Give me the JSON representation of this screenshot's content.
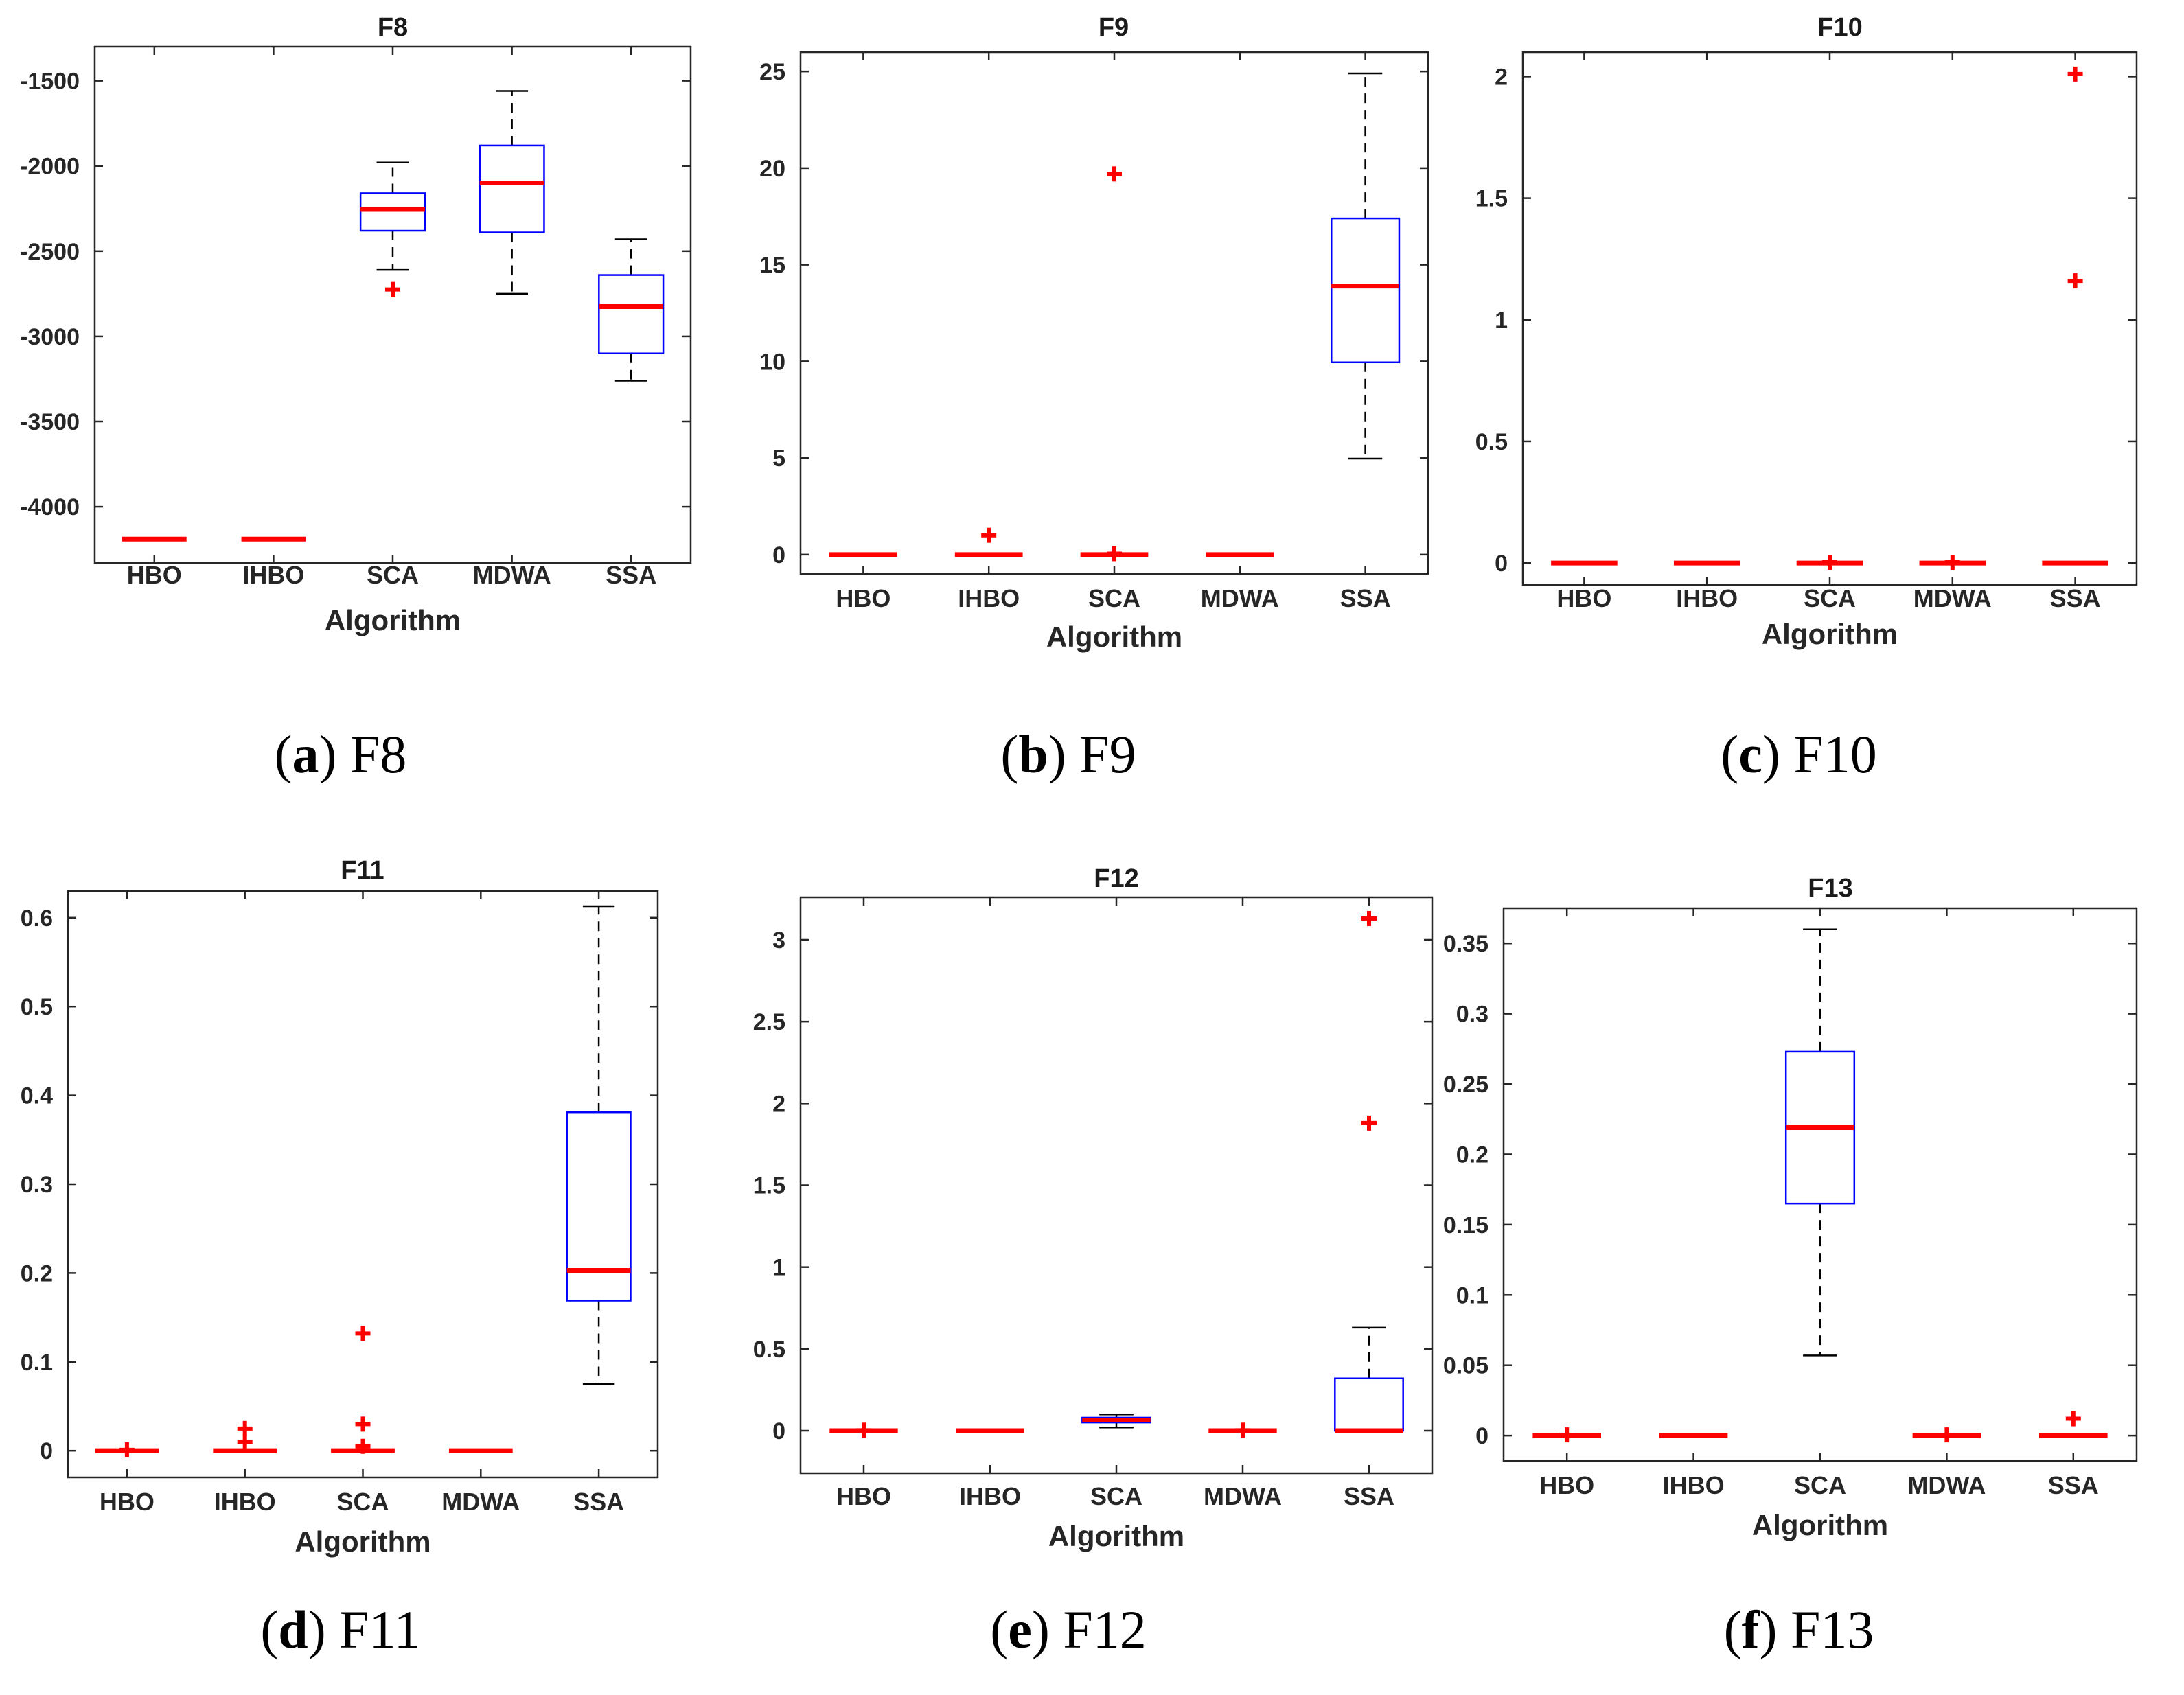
{
  "figure": {
    "xlabel": "Algorithm",
    "categories": [
      "HBO",
      "IHBO",
      "SCA",
      "MDWA",
      "SSA"
    ],
    "colors": {
      "box": "#0000ff",
      "median": "#ff0000",
      "outlier": "#ff0000",
      "whisker": "#000000",
      "axis": "#262626"
    }
  },
  "chart_data": [
    {
      "type": "boxplot",
      "id": "a",
      "title": "F8",
      "caption": {
        "letter": "a",
        "text": "F8"
      },
      "xlabel": "Algorithm",
      "categories": [
        "HBO",
        "IHBO",
        "SCA",
        "MDWA",
        "SSA"
      ],
      "ylim": [
        -4330,
        -1300
      ],
      "yticks": [
        -4000,
        -3500,
        -3000,
        -2500,
        -2000,
        -1500
      ],
      "ytick_labels": [
        "-4000",
        "-3500",
        "-3000",
        "-2500",
        "-2000",
        "-1500"
      ],
      "boxes": [
        {
          "q1": -4190,
          "median": -4190,
          "q3": -4190,
          "whisker_low": -4190,
          "whisker_high": -4190,
          "outliers": []
        },
        {
          "q1": -4190,
          "median": -4190,
          "q3": -4190,
          "whisker_low": -4190,
          "whisker_high": -4190,
          "outliers": []
        },
        {
          "q1": -2380,
          "median": -2255,
          "q3": -2160,
          "whisker_low": -2610,
          "whisker_high": -1980,
          "outliers": [
            -2725
          ]
        },
        {
          "q1": -2390,
          "median": -2100,
          "q3": -1880,
          "whisker_low": -2750,
          "whisker_high": -1560,
          "outliers": []
        },
        {
          "q1": -3100,
          "median": -2825,
          "q3": -2640,
          "whisker_low": -3260,
          "whisker_high": -2430,
          "outliers": []
        }
      ]
    },
    {
      "type": "boxplot",
      "id": "b",
      "title": "F9",
      "caption": {
        "letter": "b",
        "text": "F9"
      },
      "xlabel": "Algorithm",
      "categories": [
        "HBO",
        "IHBO",
        "SCA",
        "MDWA",
        "SSA"
      ],
      "ylim": [
        -1,
        26
      ],
      "yticks": [
        0,
        5,
        10,
        15,
        20,
        25
      ],
      "ytick_labels": [
        "0",
        "5",
        "10",
        "15",
        "20",
        "25"
      ],
      "boxes": [
        {
          "q1": 0,
          "median": 0,
          "q3": 0,
          "whisker_low": 0,
          "whisker_high": 0,
          "outliers": []
        },
        {
          "q1": 0,
          "median": 0,
          "q3": 0,
          "whisker_low": 0,
          "whisker_high": 0,
          "outliers": [
            1.0
          ]
        },
        {
          "q1": 0,
          "median": 0,
          "q3": 0,
          "whisker_low": 0,
          "whisker_high": 0,
          "outliers": [
            19.7,
            0.05
          ]
        },
        {
          "q1": 0,
          "median": 0,
          "q3": 0,
          "whisker_low": 0,
          "whisker_high": 0,
          "outliers": []
        },
        {
          "q1": 9.95,
          "median": 13.9,
          "q3": 17.4,
          "whisker_low": 4.97,
          "whisker_high": 24.9,
          "outliers": []
        }
      ]
    },
    {
      "type": "boxplot",
      "id": "c",
      "title": "F10",
      "caption": {
        "letter": "c",
        "text": "F10"
      },
      "xlabel": "Algorithm",
      "categories": [
        "HBO",
        "IHBO",
        "SCA",
        "MDWA",
        "SSA"
      ],
      "ylim": [
        -0.09,
        2.1
      ],
      "yticks": [
        0,
        0.5,
        1,
        1.5,
        2
      ],
      "ytick_labels": [
        "0",
        "0.5",
        "1",
        "1.5",
        "2"
      ],
      "boxes": [
        {
          "q1": 0,
          "median": 0,
          "q3": 0,
          "whisker_low": 0,
          "whisker_high": 0,
          "outliers": []
        },
        {
          "q1": 0,
          "median": 0,
          "q3": 0,
          "whisker_low": 0,
          "whisker_high": 0,
          "outliers": []
        },
        {
          "q1": 0,
          "median": 0,
          "q3": 0,
          "whisker_low": 0,
          "whisker_high": 0,
          "outliers": [
            0.003
          ]
        },
        {
          "q1": 0,
          "median": 0,
          "q3": 0,
          "whisker_low": 0,
          "whisker_high": 0,
          "outliers": [
            0.003
          ]
        },
        {
          "q1": 0,
          "median": 0,
          "q3": 0,
          "whisker_low": 0,
          "whisker_high": 0,
          "outliers": [
            2.01,
            1.16
          ]
        }
      ]
    },
    {
      "type": "boxplot",
      "id": "d",
      "title": "F11",
      "caption": {
        "letter": "d",
        "text": "F11"
      },
      "xlabel": "Algorithm",
      "categories": [
        "HBO",
        "IHBO",
        "SCA",
        "MDWA",
        "SSA"
      ],
      "ylim": [
        -0.03,
        0.63
      ],
      "yticks": [
        0,
        0.1,
        0.2,
        0.3,
        0.4,
        0.5,
        0.6
      ],
      "ytick_labels": [
        "0",
        "0.1",
        "0.2",
        "0.3",
        "0.4",
        "0.5",
        "0.6"
      ],
      "boxes": [
        {
          "q1": 0,
          "median": 0,
          "q3": 0,
          "whisker_low": 0,
          "whisker_high": 0,
          "outliers": [
            0.001
          ]
        },
        {
          "q1": 0,
          "median": 0,
          "q3": 0,
          "whisker_low": 0,
          "whisker_high": 0,
          "outliers": [
            0.025,
            0.01
          ]
        },
        {
          "q1": 0,
          "median": 0,
          "q3": 0,
          "whisker_low": 0,
          "whisker_high": 0,
          "outliers": [
            0.132,
            0.03,
            0.005
          ]
        },
        {
          "q1": 0,
          "median": 0,
          "q3": 0,
          "whisker_low": 0,
          "whisker_high": 0,
          "outliers": []
        },
        {
          "q1": 0.169,
          "median": 0.203,
          "q3": 0.381,
          "whisker_low": 0.075,
          "whisker_high": 0.613,
          "outliers": []
        }
      ]
    },
    {
      "type": "boxplot",
      "id": "e",
      "title": "F12",
      "caption": {
        "letter": "e",
        "text": "F12"
      },
      "xlabel": "Algorithm",
      "categories": [
        "HBO",
        "IHBO",
        "SCA",
        "MDWA",
        "SSA"
      ],
      "ylim": [
        -0.26,
        3.26
      ],
      "yticks": [
        0,
        0.5,
        1,
        1.5,
        2,
        2.5,
        3
      ],
      "ytick_labels": [
        "0",
        "0.5",
        "1",
        "1.5",
        "2",
        "2.5",
        "3"
      ],
      "boxes": [
        {
          "q1": 0,
          "median": 0,
          "q3": 0,
          "whisker_low": 0,
          "whisker_high": 0,
          "outliers": [
            0.003
          ]
        },
        {
          "q1": 0,
          "median": 0,
          "q3": 0,
          "whisker_low": 0,
          "whisker_high": 0,
          "outliers": []
        },
        {
          "q1": 0.05,
          "median": 0.065,
          "q3": 0.08,
          "whisker_low": 0.02,
          "whisker_high": 0.1,
          "outliers": []
        },
        {
          "q1": 0,
          "median": 0,
          "q3": 0,
          "whisker_low": 0,
          "whisker_high": 0,
          "outliers": [
            0.003
          ]
        },
        {
          "q1": 0,
          "median": 0,
          "q3": 0.32,
          "whisker_low": 0,
          "whisker_high": 0.63,
          "outliers": [
            3.13,
            1.88
          ]
        }
      ]
    },
    {
      "type": "boxplot",
      "id": "f",
      "title": "F13",
      "caption": {
        "letter": "f",
        "text": "F13"
      },
      "xlabel": "Algorithm",
      "categories": [
        "HBO",
        "IHBO",
        "SCA",
        "MDWA",
        "SSA"
      ],
      "ylim": [
        -0.018,
        0.375
      ],
      "yticks": [
        0,
        0.05,
        0.1,
        0.15,
        0.2,
        0.25,
        0.3,
        0.35
      ],
      "ytick_labels": [
        "0",
        "0.05",
        "0.1",
        "0.15",
        "0.2",
        "0.25",
        "0.3",
        "0.35"
      ],
      "boxes": [
        {
          "q1": 0,
          "median": 0,
          "q3": 0,
          "whisker_low": 0,
          "whisker_high": 0,
          "outliers": [
            0.0005
          ]
        },
        {
          "q1": 0,
          "median": 0,
          "q3": 0,
          "whisker_low": 0,
          "whisker_high": 0,
          "outliers": []
        },
        {
          "q1": 0.165,
          "median": 0.219,
          "q3": 0.273,
          "whisker_low": 0.057,
          "whisker_high": 0.36,
          "outliers": []
        },
        {
          "q1": 0,
          "median": 0,
          "q3": 0,
          "whisker_low": 0,
          "whisker_high": 0,
          "outliers": [
            0.0005
          ]
        },
        {
          "q1": 0,
          "median": 0,
          "q3": 0,
          "whisker_low": 0,
          "whisker_high": 0,
          "outliers": [
            0.012
          ]
        }
      ]
    }
  ]
}
